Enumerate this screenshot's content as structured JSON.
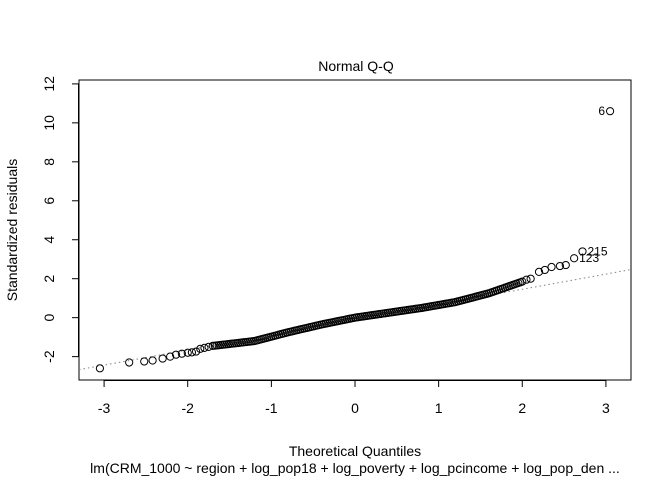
{
  "chart_data": {
    "type": "scatter",
    "title": "Normal Q-Q",
    "xlabel": "Theoretical Quantiles",
    "ylabel": "Standardized residuals",
    "subtitle": "lm(CRM_1000 ~ region + log_pop18 + log_poverty + log_pcincome + log_pop_den ...",
    "xlim": [
      -3.3,
      3.3
    ],
    "ylim": [
      -3.2,
      12.2
    ],
    "x_ticks": [
      -3,
      -2,
      -1,
      0,
      1,
      2,
      3
    ],
    "y_ticks": [
      -2,
      0,
      2,
      4,
      6,
      8,
      10,
      12
    ],
    "grid": false,
    "reference_line": {
      "x": [
        -3.3,
        3.3
      ],
      "y": [
        -2.67,
        2.47
      ],
      "style": "dotted",
      "color": "#808080"
    },
    "points": [
      {
        "x": -3.05,
        "y": -2.6
      },
      {
        "x": -2.7,
        "y": -2.3
      },
      {
        "x": -2.52,
        "y": -2.25
      },
      {
        "x": -2.42,
        "y": -2.2
      },
      {
        "x": -2.3,
        "y": -2.1
      },
      {
        "x": -2.21,
        "y": -2.0
      },
      {
        "x": -2.14,
        "y": -1.9
      },
      {
        "x": -2.07,
        "y": -1.85
      },
      {
        "x": -2.0,
        "y": -1.8
      },
      {
        "x": -1.95,
        "y": -1.78
      },
      {
        "x": -1.9,
        "y": -1.74
      },
      {
        "x": -1.85,
        "y": -1.6
      },
      {
        "x": -1.8,
        "y": -1.55
      },
      {
        "x": -1.75,
        "y": -1.5
      },
      {
        "x": 2.05,
        "y": 1.95
      },
      {
        "x": 2.1,
        "y": 2.0
      },
      {
        "x": 2.2,
        "y": 2.35
      },
      {
        "x": 2.27,
        "y": 2.45
      },
      {
        "x": 2.35,
        "y": 2.6
      },
      {
        "x": 2.45,
        "y": 2.65
      },
      {
        "x": 2.52,
        "y": 2.7
      },
      {
        "x": 2.62,
        "y": 3.05,
        "label": "123"
      },
      {
        "x": 2.72,
        "y": 3.4,
        "label": "215"
      },
      {
        "x": 3.05,
        "y": 10.6,
        "label": "6"
      }
    ],
    "dense_segment": {
      "x_start": -1.7,
      "x_end": 2.0,
      "count": 160,
      "knots_x": [
        -1.7,
        -1.2,
        -0.8,
        -0.4,
        0.0,
        0.4,
        0.8,
        1.2,
        1.6,
        2.0
      ],
      "knots_y": [
        -1.45,
        -1.2,
        -0.75,
        -0.35,
        0.0,
        0.25,
        0.5,
        0.8,
        1.25,
        1.85
      ]
    }
  }
}
